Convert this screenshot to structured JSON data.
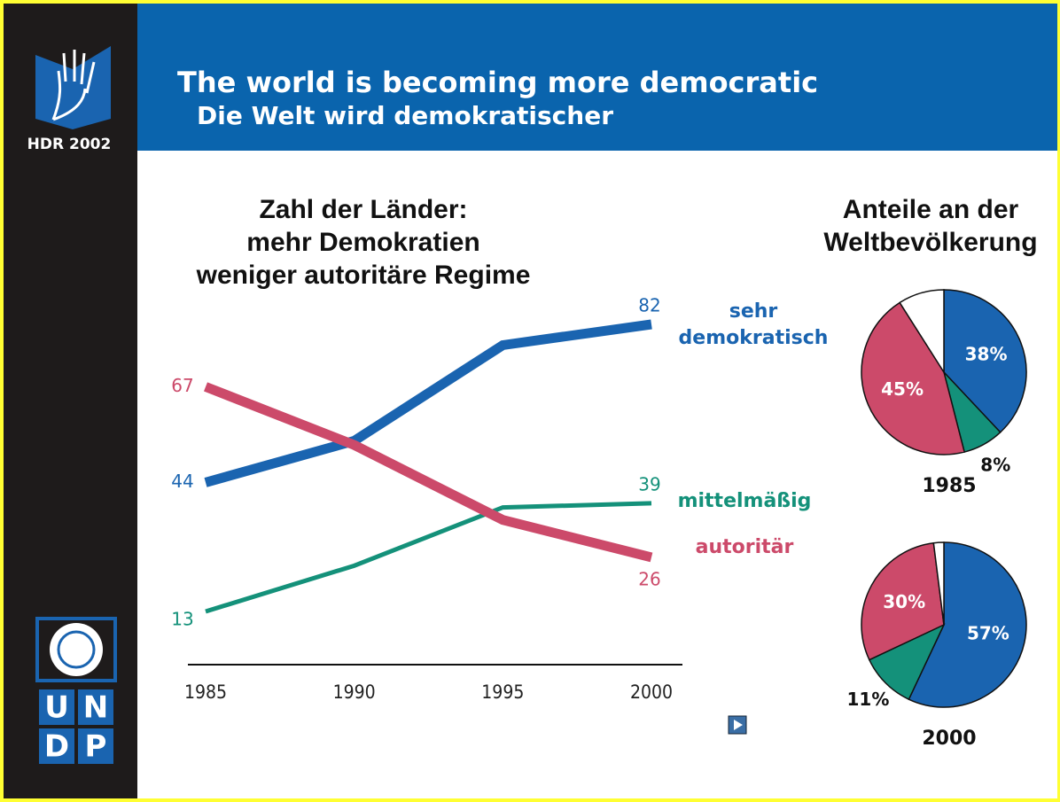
{
  "header": {
    "title": "The world is becoming more democratic",
    "subtitle": "Die Welt wird demokratischer",
    "badge": "HDR 2002",
    "logo_letters": [
      "U",
      "N",
      "D",
      "P"
    ]
  },
  "pies_heading": "Anteile an der\nWeltbevölkerung",
  "chart_data": [
    {
      "type": "line",
      "title": "Zahl der Länder:\nmehr Demokratien\nweniger autoritäre Regime",
      "x": [
        1985,
        1990,
        1995,
        2000
      ],
      "series": [
        {
          "name": "sehr demokratisch",
          "color": "#1a64b0",
          "values": [
            44,
            54,
            77,
            82
          ]
        },
        {
          "name": "mittelmäßig",
          "color": "#14917a",
          "values": [
            13,
            24,
            38,
            39
          ]
        },
        {
          "name": "autoritär",
          "color": "#cc4a6a",
          "values": [
            67,
            53,
            35,
            26
          ]
        }
      ]
    },
    {
      "type": "pie",
      "title": "1985",
      "categories": [
        "sehr demokratisch",
        "mittelmäßig",
        "autoritär",
        null
      ],
      "values": [
        38,
        8,
        45,
        9
      ],
      "value_labels": [
        "38%",
        "8%",
        "45%",
        null
      ],
      "colors": [
        "#1a64b0",
        "#14917a",
        "#cc4a6a",
        "#ffffff"
      ]
    },
    {
      "type": "pie",
      "title": "2000",
      "categories": [
        "sehr demokratisch",
        "mittelmäßig",
        "autoritär",
        null
      ],
      "values": [
        57,
        11,
        30,
        2
      ],
      "value_labels": [
        "57%",
        "11%",
        "30%",
        null
      ],
      "colors": [
        "#1a64b0",
        "#14917a",
        "#cc4a6a",
        "#ffffff"
      ]
    }
  ]
}
